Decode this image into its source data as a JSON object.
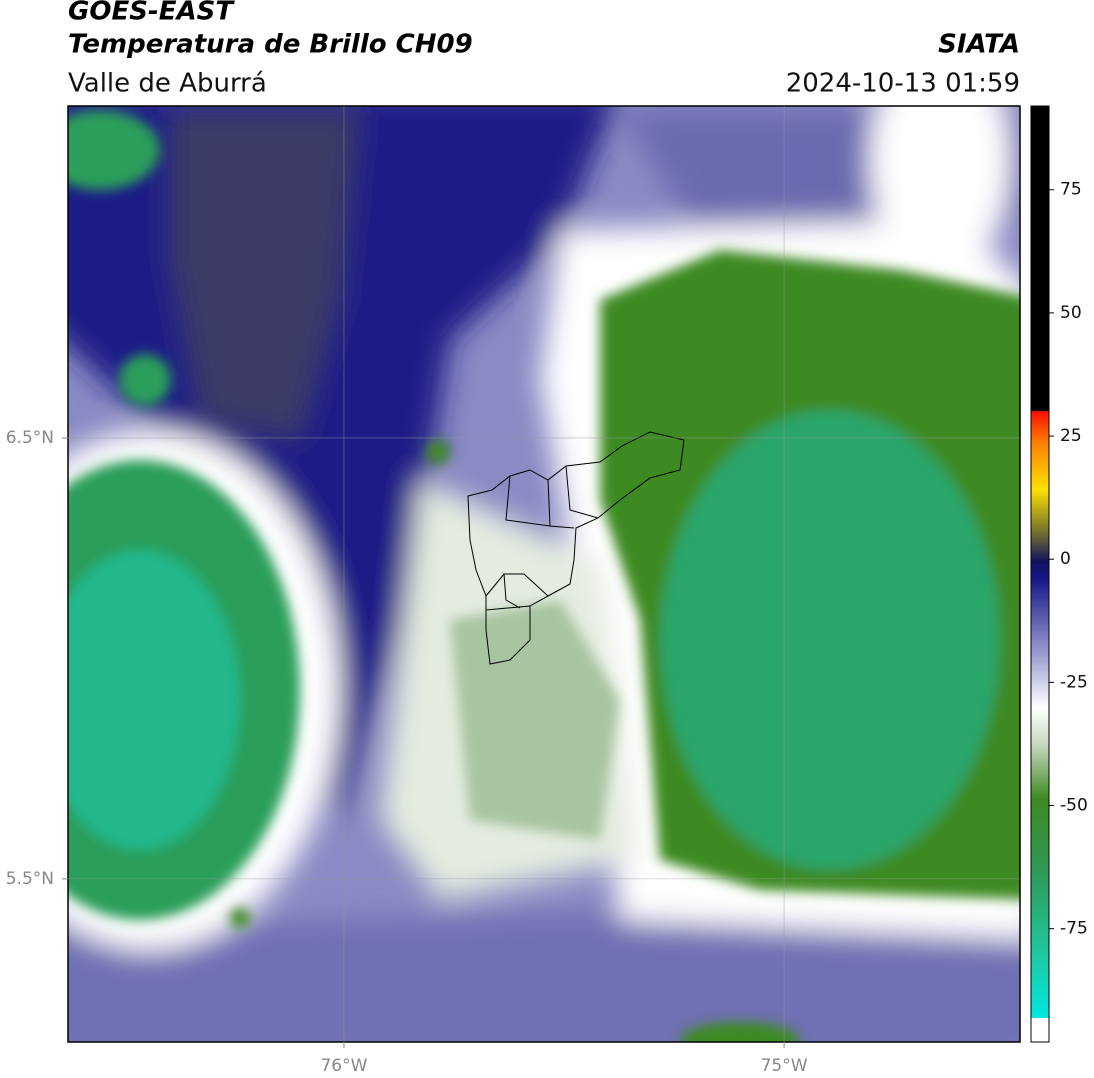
{
  "chart_data": {
    "type": "contour-map",
    "title": "GOES-EAST",
    "subtitle": "Temperatura de Brillo CH09",
    "region": "Valle de Aburrá",
    "source": "SIATA",
    "timestamp": "2024-10-13 01:59",
    "xlim": [
      -76.627,
      -74.464
    ],
    "ylim": [
      5.13,
      7.253
    ],
    "xticks": [
      {
        "value": -76,
        "label": "76°W"
      },
      {
        "value": -75,
        "label": "75°W"
      }
    ],
    "yticks": [
      {
        "value": 6.5,
        "label": "6.5°N"
      },
      {
        "value": 5.5,
        "label": "5.5°N"
      }
    ],
    "grid": true,
    "colorbar": {
      "lim": [
        -98,
        92
      ],
      "ticks": [
        75,
        50,
        25,
        0,
        -25,
        -50,
        -75
      ]
    }
  }
}
